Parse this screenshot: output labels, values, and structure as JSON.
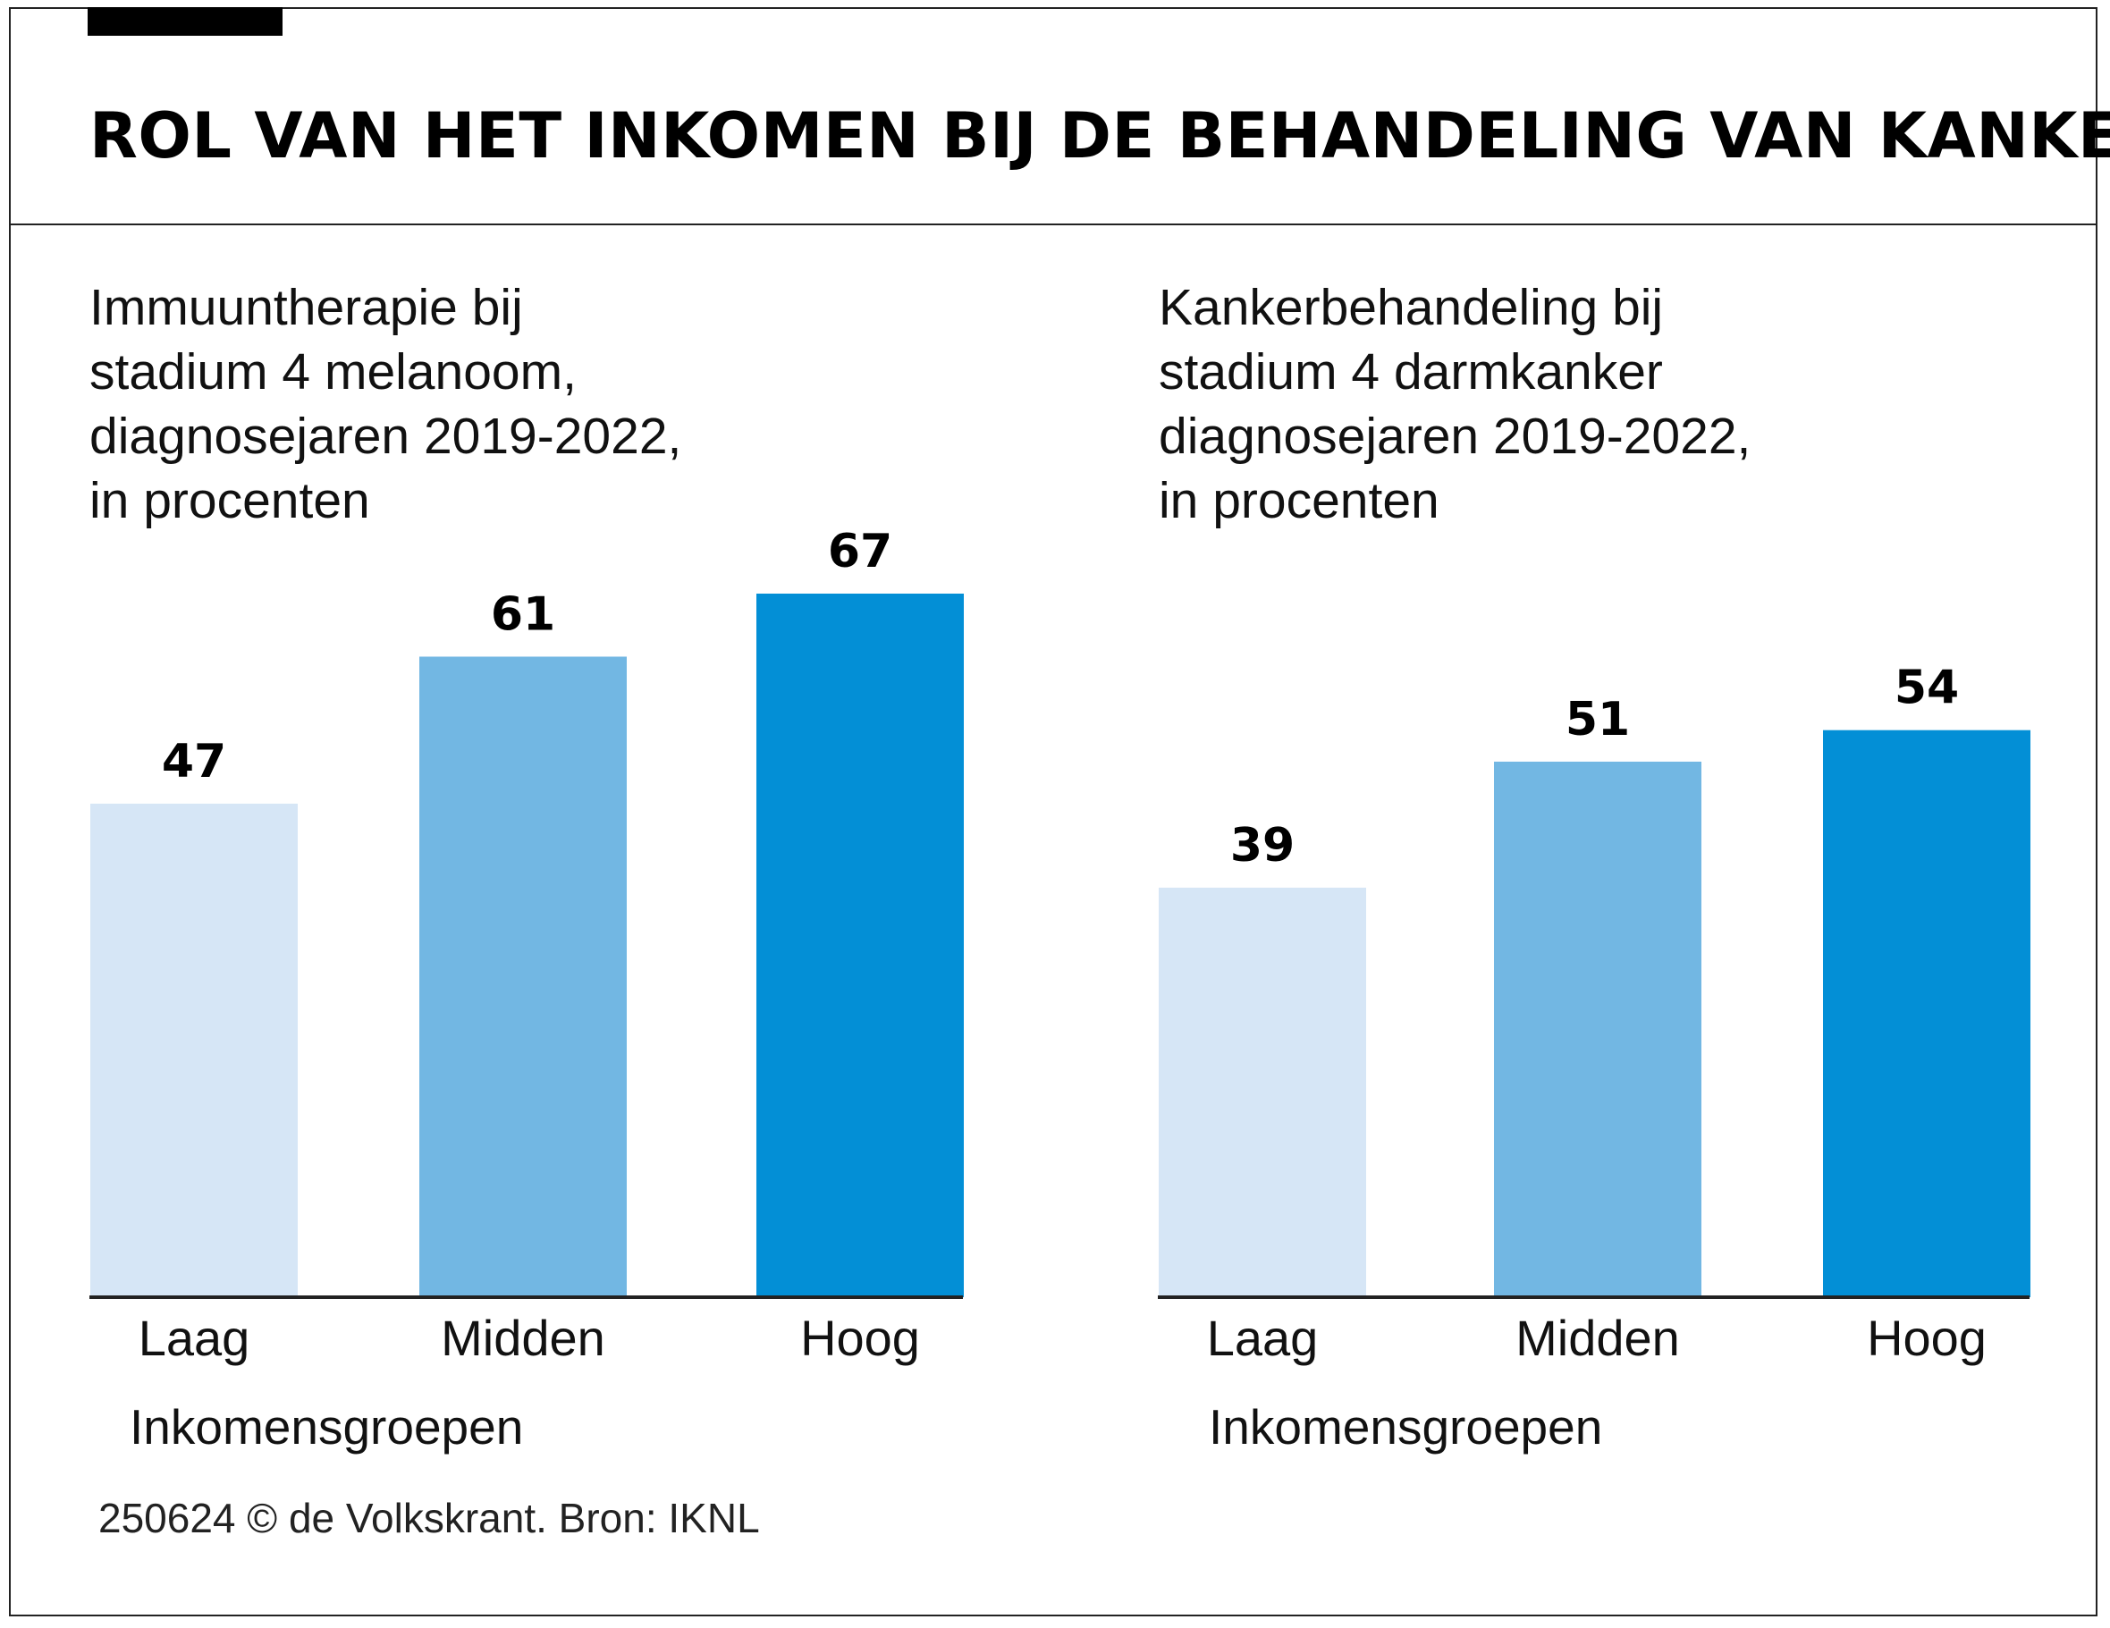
{
  "title": "ROL VAN HET INKOMEN BIJ DE BEHANDELING VAN KANKER",
  "credit": "250624 © de Volkskrant. Bron: IKNL",
  "colors": {
    "laag": "#d6e6f6",
    "midden": "#72b7e3",
    "hoog": "#038fd6",
    "axis": "#222222"
  },
  "chart_data": [
    {
      "type": "bar",
      "title": "Immuuntherapie bij\nstadium 4 melanoom,\ndiagnosejaren 2019-2022,\nin procenten",
      "categories": [
        "Laag",
        "Midden",
        "Hoog"
      ],
      "values": [
        47,
        61,
        67
      ],
      "xlabel": "Inkomensgroepen",
      "ylabel": "",
      "ylim": [
        0,
        67
      ],
      "grid": false
    },
    {
      "type": "bar",
      "title": "Kankerbehandeling bij\nstadium 4 darmkanker\ndiagnosejaren 2019-2022,\nin procenten",
      "categories": [
        "Laag",
        "Midden",
        "Hoog"
      ],
      "values": [
        39,
        51,
        54
      ],
      "xlabel": "Inkomensgroepen",
      "ylabel": "",
      "ylim": [
        0,
        67
      ],
      "grid": false
    }
  ]
}
